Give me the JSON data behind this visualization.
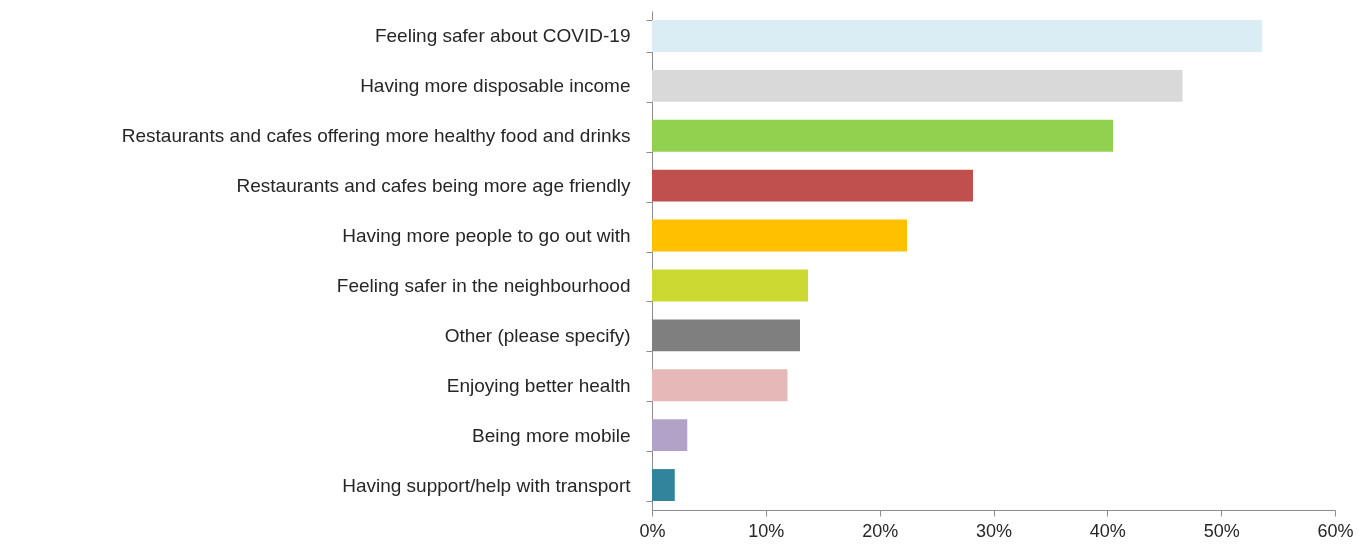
{
  "chart_data": {
    "type": "bar",
    "orientation": "horizontal",
    "categories": [
      "Feeling safer about COVID-19",
      "Having more disposable income",
      "Restaurants and cafes offering more healthy food and drinks",
      "Restaurants and cafes being more age friendly",
      "Having more people to go out with",
      "Feeling safer in the neighbourhood",
      "Other (please specify)",
      "Enjoying better health",
      "Being more mobile",
      "Having support/help with transport"
    ],
    "values": [
      53.6,
      46.6,
      40.5,
      28.2,
      22.4,
      13.7,
      13.0,
      11.9,
      3.1,
      2.0
    ],
    "colors": [
      "#daedf4",
      "#d9d9d9",
      "#92d050",
      "#c0504d",
      "#ffc000",
      "#cbd932",
      "#7f7f7f",
      "#e6b9b8",
      "#b3a2c7",
      "#31849b"
    ],
    "xlim": [
      0,
      60
    ],
    "xticks": [
      {
        "value": 0,
        "label": "0%"
      },
      {
        "value": 10,
        "label": "10%"
      },
      {
        "value": 20,
        "label": "20%"
      },
      {
        "value": 30,
        "label": "30%"
      },
      {
        "value": 40,
        "label": "40%"
      },
      {
        "value": 50,
        "label": "50%"
      },
      {
        "value": 60,
        "label": "60%"
      }
    ]
  }
}
